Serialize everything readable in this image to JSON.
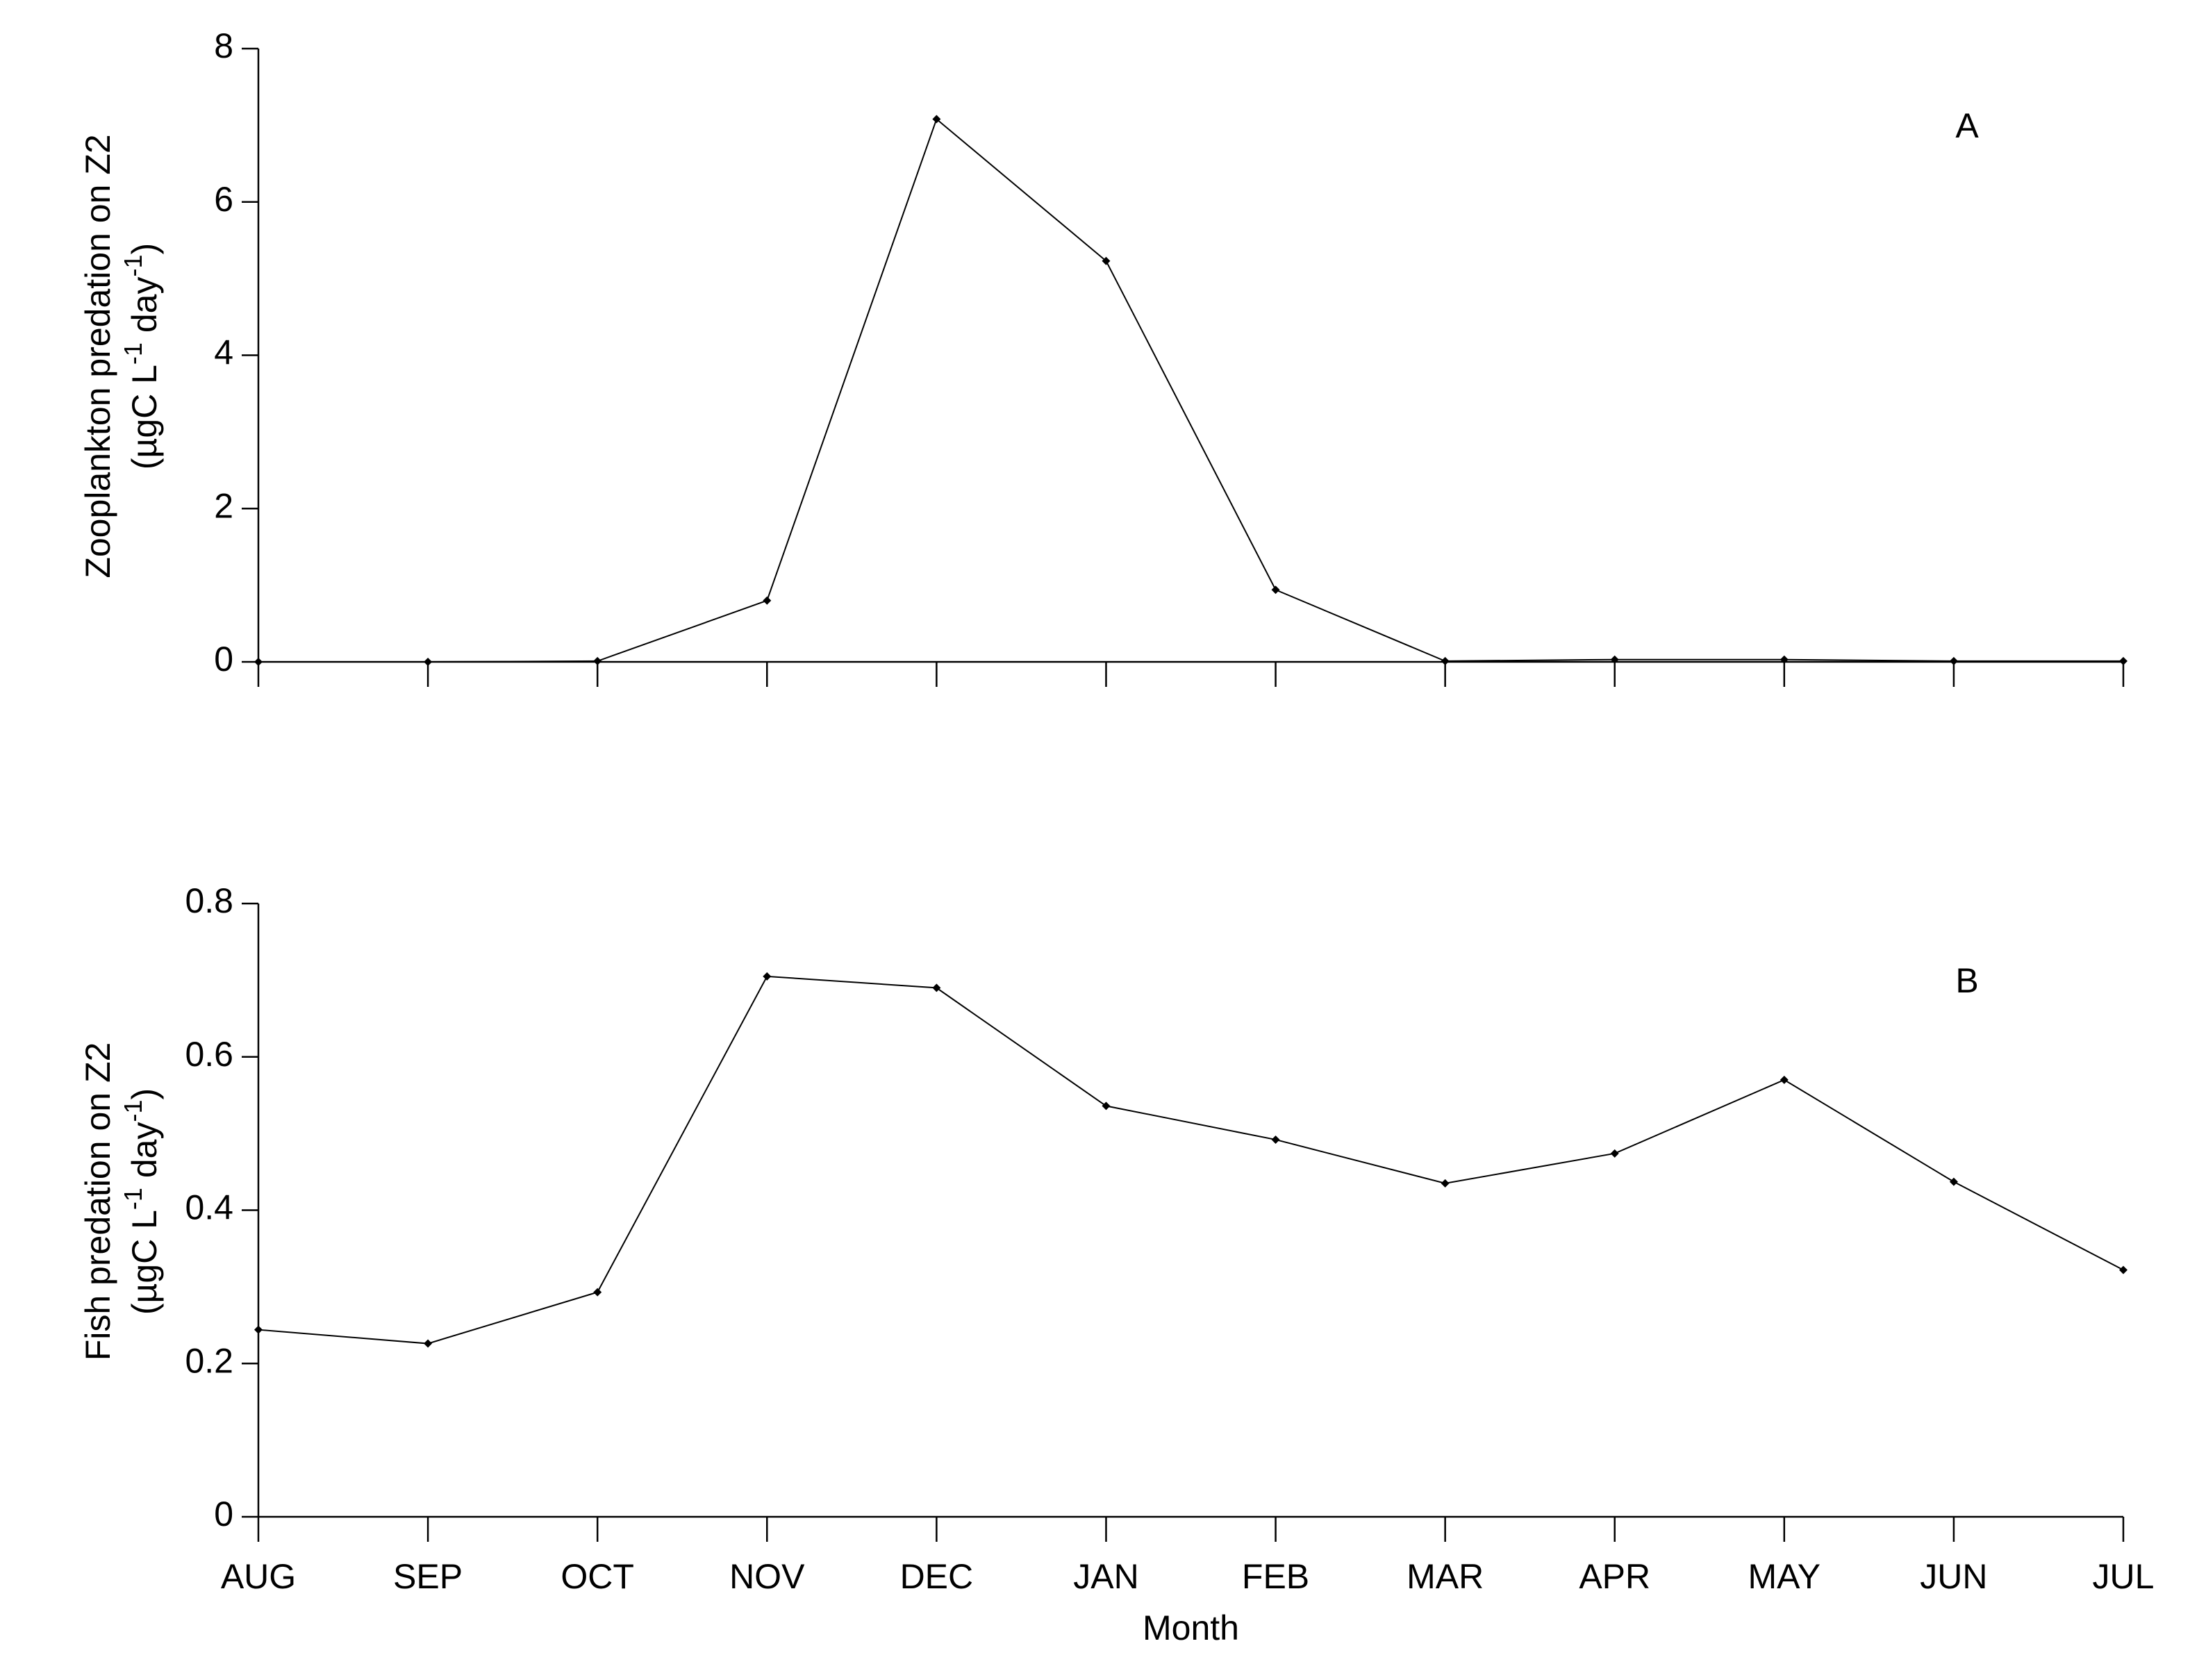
{
  "chart_data": [
    {
      "type": "line",
      "annotation": "A",
      "ylabel": [
        "Zooplankton predation on Z2",
        [
          "(µgC L",
          "-1",
          " day",
          "-1",
          ")"
        ]
      ],
      "categories": [
        null,
        null,
        null,
        null,
        null,
        null,
        null,
        null,
        null,
        null,
        null,
        null
      ],
      "values": [
        0,
        0,
        0.01,
        0.8,
        7.08,
        5.23,
        0.94,
        0.01,
        0.03,
        0.03,
        0.01,
        0.01
      ],
      "color": "#000000",
      "ylim": [
        0,
        8
      ],
      "yticks": [
        0,
        2,
        4,
        6,
        8
      ]
    },
    {
      "type": "line",
      "annotation": "B",
      "xlabel": "Month",
      "ylabel": [
        "Fish predation on Z2",
        [
          "(µgC L",
          "-1",
          " day",
          "-1",
          ")"
        ]
      ],
      "categories": [
        "AUG",
        "SEP",
        "OCT",
        "NOV",
        "DEC",
        "JAN",
        "FEB",
        "MAR",
        "APR",
        "MAY",
        "JUN",
        "JUL"
      ],
      "values": [
        0.244,
        0.226,
        0.293,
        0.705,
        0.69,
        0.536,
        0.492,
        0.435,
        0.474,
        0.57,
        0.437,
        0.322
      ],
      "color": "#000000",
      "ylim": [
        0,
        0.8
      ],
      "yticks": [
        0,
        0.2,
        0.4,
        0.6,
        0.8
      ]
    }
  ]
}
